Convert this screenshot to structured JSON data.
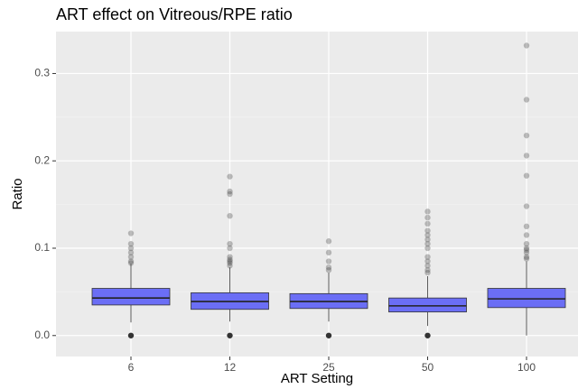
{
  "chart_data": {
    "type": "boxplot",
    "title": "ART effect on Vitreous/RPE ratio",
    "x_label": "ART Setting",
    "y_label": "Ratio",
    "categories": [
      "6",
      "12",
      "25",
      "50",
      "100"
    ],
    "color": "#6b6ef5",
    "outlier_color": "#333333",
    "ylim": [
      -0.024,
      0.348
    ],
    "yticks": [
      {
        "value": 0,
        "label": "0.0"
      },
      0.1,
      0.2,
      0.3
    ],
    "minor_yticks": [
      0.05,
      0.15,
      0.25
    ],
    "grid": true,
    "boxes": [
      {
        "low": 0.015,
        "q1": 0.035,
        "median": 0.043,
        "q3": 0.054,
        "high": 0.082,
        "outliers": [
          0,
          0.083,
          0.085,
          0.09,
          0.095,
          0.1,
          0.105,
          0.117
        ]
      },
      {
        "low": 0.016,
        "q1": 0.03,
        "median": 0.039,
        "q3": 0.049,
        "high": 0.078,
        "outliers": [
          0,
          0.08,
          0.083,
          0.085,
          0.087,
          0.09,
          0.1,
          0.105,
          0.137,
          0.162,
          0.165,
          0.182
        ]
      },
      {
        "low": 0.016,
        "q1": 0.031,
        "median": 0.039,
        "q3": 0.048,
        "high": 0.072,
        "outliers": [
          0,
          0.075,
          0.078,
          0.085,
          0.095,
          0.108
        ]
      },
      {
        "low": 0.011,
        "q1": 0.027,
        "median": 0.034,
        "q3": 0.043,
        "high": 0.068,
        "outliers": [
          0,
          0.072,
          0.075,
          0.08,
          0.085,
          0.09,
          0.1,
          0.105,
          0.11,
          0.115,
          0.12,
          0.128,
          0.135,
          0.142
        ]
      },
      {
        "low": 0,
        "q1": 0.032,
        "median": 0.042,
        "q3": 0.054,
        "high": 0.085,
        "outliers": [
          0.088,
          0.09,
          0.095,
          0.098,
          0.1,
          0.105,
          0.115,
          0.125,
          0.148,
          0.183,
          0.206,
          0.229,
          0.27,
          0.332
        ]
      }
    ]
  }
}
